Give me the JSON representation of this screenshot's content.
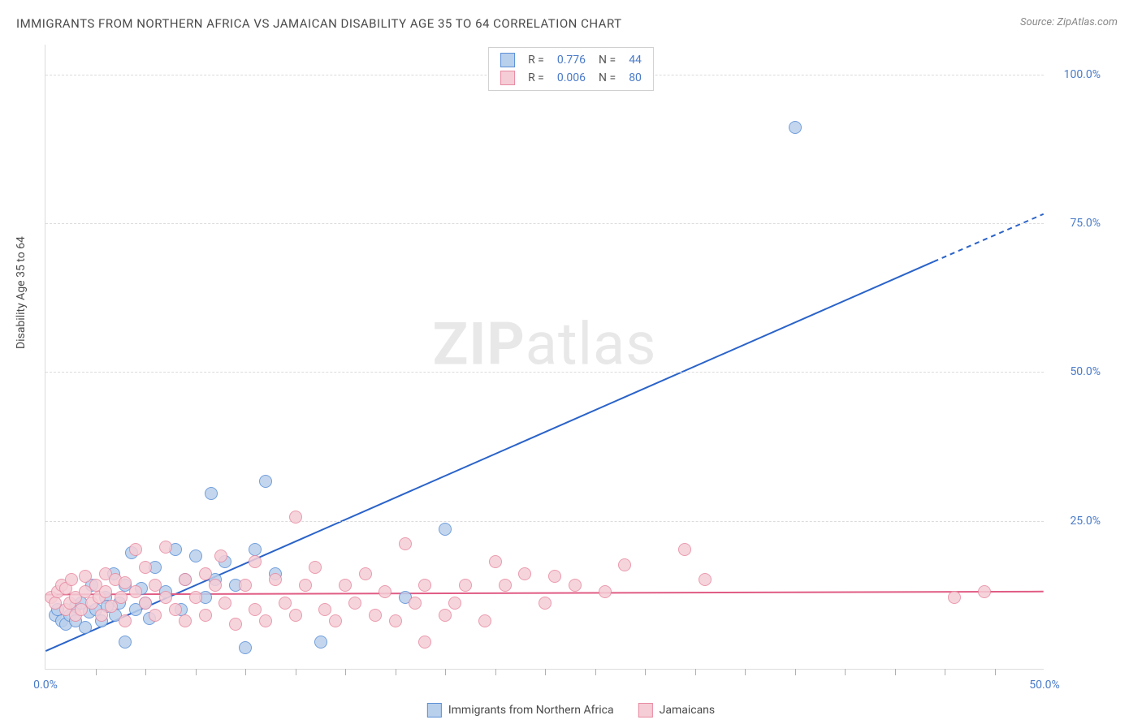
{
  "title": "IMMIGRANTS FROM NORTHERN AFRICA VS JAMAICAN DISABILITY AGE 35 TO 64 CORRELATION CHART",
  "source": "Source: ZipAtlas.com",
  "ylabel": "Disability Age 35 to 64",
  "watermark_a": "ZIP",
  "watermark_b": "atlas",
  "chart": {
    "type": "scatter",
    "xlim": [
      0,
      50
    ],
    "ylim": [
      0,
      105
    ],
    "xtick_labels": [
      "0.0%",
      "50.0%"
    ],
    "xtick_positions": [
      0,
      50
    ],
    "ytick_labels": [
      "25.0%",
      "50.0%",
      "75.0%",
      "100.0%"
    ],
    "ytick_positions": [
      25,
      50,
      75,
      100
    ],
    "minor_xticks": [
      2.5,
      5,
      7.5,
      10,
      12.5,
      15,
      17.5,
      20,
      22.5,
      25,
      27.5,
      30,
      32.5,
      35,
      37.5,
      40,
      42.5,
      45,
      47.5
    ],
    "background_color": "#ffffff",
    "grid_color": "#dcdcdc",
    "marker_radius": 8,
    "series": [
      {
        "name": "Immigrants from Northern Africa",
        "fill": "#b9d0ec",
        "stroke": "#5a8fd6",
        "R": "0.776",
        "N": "44",
        "trend": {
          "x1": 0,
          "y1": 3,
          "x2": 44.5,
          "y2": 68.5,
          "x3_dash": 50,
          "y3_dash": 76.5,
          "color": "#2a63c9",
          "width": 2
        },
        "points": [
          [
            0.5,
            9
          ],
          [
            0.8,
            8
          ],
          [
            0.6,
            10
          ],
          [
            1.0,
            7.5
          ],
          [
            1.2,
            9
          ],
          [
            1.5,
            10.5
          ],
          [
            1.5,
            8
          ],
          [
            1.8,
            11
          ],
          [
            2.0,
            7
          ],
          [
            2.2,
            9.5
          ],
          [
            2.3,
            14
          ],
          [
            2.5,
            10
          ],
          [
            2.8,
            8
          ],
          [
            3.0,
            12
          ],
          [
            3.1,
            10.5
          ],
          [
            3.4,
            16
          ],
          [
            3.5,
            9
          ],
          [
            3.7,
            11
          ],
          [
            4.0,
            14
          ],
          [
            4.0,
            4.5
          ],
          [
            4.3,
            19.5
          ],
          [
            4.5,
            10
          ],
          [
            4.8,
            13.5
          ],
          [
            5.0,
            11
          ],
          [
            5.2,
            8.5
          ],
          [
            5.5,
            17
          ],
          [
            6.0,
            13
          ],
          [
            6.5,
            20
          ],
          [
            6.8,
            10
          ],
          [
            7.0,
            15
          ],
          [
            7.5,
            19
          ],
          [
            8.0,
            12
          ],
          [
            8.3,
            29.5
          ],
          [
            8.5,
            15
          ],
          [
            9.0,
            18
          ],
          [
            9.5,
            14
          ],
          [
            10.0,
            3.5
          ],
          [
            10.5,
            20
          ],
          [
            11.0,
            31.5
          ],
          [
            11.5,
            16
          ],
          [
            13.8,
            4.5
          ],
          [
            18.0,
            12
          ],
          [
            20.0,
            23.5
          ],
          [
            37.5,
            91
          ]
        ]
      },
      {
        "name": "Jamaicans",
        "fill": "#f5cdd6",
        "stroke": "#e78aa1",
        "R": "0.006",
        "N": "80",
        "trend": {
          "x1": 0,
          "y1": 12.5,
          "x2": 50,
          "y2": 13.0,
          "color": "#e05c84",
          "width": 2
        },
        "points": [
          [
            0.3,
            12
          ],
          [
            0.5,
            11
          ],
          [
            0.6,
            13
          ],
          [
            0.8,
            14
          ],
          [
            1.0,
            10
          ],
          [
            1.0,
            13.5
          ],
          [
            1.2,
            11
          ],
          [
            1.3,
            15
          ],
          [
            1.5,
            12
          ],
          [
            1.5,
            9
          ],
          [
            1.8,
            10
          ],
          [
            2.0,
            13
          ],
          [
            2.0,
            15.5
          ],
          [
            2.3,
            11
          ],
          [
            2.5,
            14
          ],
          [
            2.7,
            12
          ],
          [
            2.8,
            9
          ],
          [
            3.0,
            16
          ],
          [
            3.0,
            13
          ],
          [
            3.3,
            10.5
          ],
          [
            3.5,
            15
          ],
          [
            3.8,
            12
          ],
          [
            4.0,
            14.5
          ],
          [
            4.0,
            8
          ],
          [
            4.5,
            20
          ],
          [
            4.5,
            13
          ],
          [
            5.0,
            11
          ],
          [
            5.0,
            17
          ],
          [
            5.5,
            9
          ],
          [
            5.5,
            14
          ],
          [
            6.0,
            12
          ],
          [
            6.0,
            20.5
          ],
          [
            6.5,
            10
          ],
          [
            7.0,
            15
          ],
          [
            7.0,
            8
          ],
          [
            7.5,
            12
          ],
          [
            8.0,
            16
          ],
          [
            8.0,
            9
          ],
          [
            8.5,
            14
          ],
          [
            8.8,
            19
          ],
          [
            9.0,
            11
          ],
          [
            9.5,
            7.5
          ],
          [
            10.0,
            14
          ],
          [
            10.5,
            10
          ],
          [
            10.5,
            18
          ],
          [
            11.0,
            8
          ],
          [
            11.5,
            15
          ],
          [
            12.0,
            11
          ],
          [
            12.5,
            25.5
          ],
          [
            12.5,
            9
          ],
          [
            13.0,
            14
          ],
          [
            13.5,
            17
          ],
          [
            14.0,
            10
          ],
          [
            14.5,
            8
          ],
          [
            15.0,
            14
          ],
          [
            15.5,
            11
          ],
          [
            16.0,
            16
          ],
          [
            16.5,
            9
          ],
          [
            17.0,
            13
          ],
          [
            17.5,
            8
          ],
          [
            18.0,
            21
          ],
          [
            18.5,
            11
          ],
          [
            19.0,
            14
          ],
          [
            19.0,
            4.5
          ],
          [
            20.0,
            9
          ],
          [
            20.5,
            11
          ],
          [
            21.0,
            14
          ],
          [
            22.0,
            8
          ],
          [
            22.5,
            18
          ],
          [
            23.0,
            14
          ],
          [
            24.0,
            16
          ],
          [
            25.0,
            11
          ],
          [
            25.5,
            15.5
          ],
          [
            26.5,
            14
          ],
          [
            28.0,
            13
          ],
          [
            29.0,
            17.5
          ],
          [
            32.0,
            20
          ],
          [
            33.0,
            15
          ],
          [
            47.0,
            13
          ],
          [
            45.5,
            12
          ]
        ]
      }
    ]
  },
  "legend_bottom": [
    {
      "label": "Immigrants from Northern Africa",
      "fill": "#b9d0ec",
      "stroke": "#5a8fd6"
    },
    {
      "label": "Jamaicans",
      "fill": "#f5cdd6",
      "stroke": "#e78aa1"
    }
  ]
}
